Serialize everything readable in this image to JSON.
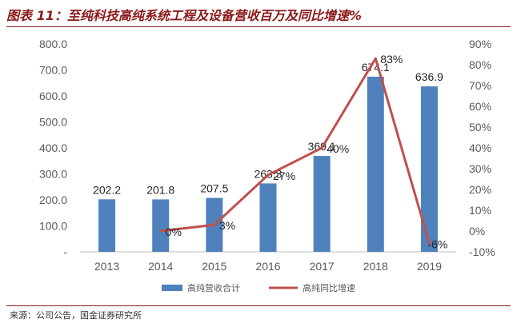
{
  "title": "图表 11：至纯科技高纯系统工程及设备营收百万及同比增速%",
  "source": "来源：公司公告，国金证券研究所",
  "chart_data": {
    "type": "bar",
    "categories": [
      "2013",
      "2014",
      "2015",
      "2016",
      "2017",
      "2018",
      "2019"
    ],
    "series": [
      {
        "name": "高纯营收合计",
        "type": "bar",
        "axis": "left",
        "color": "#4f81bd",
        "values": [
          202.2,
          201.8,
          207.5,
          263.3,
          369.1,
          674.1,
          636.9
        ],
        "labels": [
          "202.2",
          "201.8",
          "207.5",
          "263.3",
          "369.1",
          "674.1",
          "636.9"
        ]
      },
      {
        "name": "高纯同比增速",
        "type": "line",
        "axis": "right",
        "color": "#c0504d",
        "values": [
          null,
          0,
          3,
          27,
          40,
          83,
          -6
        ],
        "labels": [
          "",
          "0%",
          "3%",
          "27%",
          "40%",
          "83%",
          "-6%"
        ]
      }
    ],
    "y_left": {
      "ylim": [
        0,
        800
      ],
      "ticks": [
        0,
        100,
        200,
        300,
        400,
        500,
        600,
        700,
        800
      ],
      "tick_labels": [
        "-",
        "100.0",
        "200.0",
        "300.0",
        "400.0",
        "500.0",
        "600.0",
        "700.0",
        "800.0"
      ]
    },
    "y_right": {
      "ylim": [
        -10,
        90
      ],
      "ticks": [
        -10,
        0,
        10,
        20,
        30,
        40,
        50,
        60,
        70,
        80,
        90
      ],
      "tick_labels": [
        "-10%",
        "0%",
        "10%",
        "20%",
        "30%",
        "40%",
        "50%",
        "60%",
        "70%",
        "80%",
        "90%"
      ]
    },
    "grid": false,
    "legend": "bottom"
  }
}
